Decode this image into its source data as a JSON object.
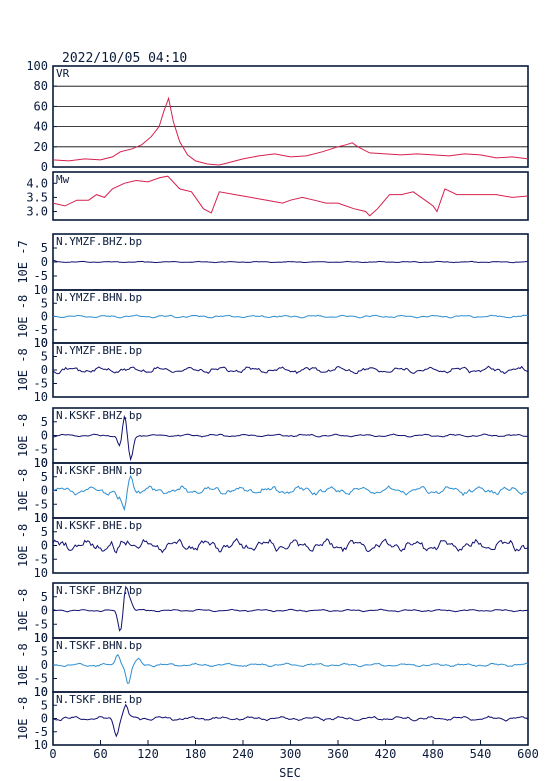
{
  "header": {
    "timestamp": "2022/10/05  04:10"
  },
  "colors": {
    "vr": "#d6204e",
    "mw": "#d6204e",
    "dark": "#101070",
    "light": "#2f8fd0",
    "axis": "#0a1a3a"
  },
  "xaxis": {
    "label": "SEC",
    "ticks": [
      0,
      60,
      120,
      180,
      240,
      300,
      360,
      420,
      480,
      540,
      600
    ],
    "range": [
      0,
      600
    ]
  },
  "chart_data": [
    {
      "type": "line",
      "label": "VR",
      "ylim": [
        0,
        100
      ],
      "yticks": [
        0,
        20,
        40,
        60,
        80,
        100
      ],
      "grid": true,
      "color": "vr",
      "series": [
        {
          "values": [
            [
              0,
              7
            ],
            [
              20,
              6
            ],
            [
              40,
              8
            ],
            [
              60,
              7
            ],
            [
              75,
              10
            ],
            [
              85,
              15
            ],
            [
              100,
              18
            ],
            [
              112,
              22
            ],
            [
              124,
              30
            ],
            [
              134,
              40
            ],
            [
              140,
              55
            ],
            [
              146,
              68
            ],
            [
              152,
              45
            ],
            [
              160,
              25
            ],
            [
              170,
              12
            ],
            [
              180,
              6
            ],
            [
              195,
              3
            ],
            [
              210,
              2
            ],
            [
              220,
              4
            ],
            [
              240,
              8
            ],
            [
              260,
              11
            ],
            [
              280,
              13
            ],
            [
              300,
              10
            ],
            [
              320,
              11
            ],
            [
              340,
              15
            ],
            [
              360,
              20
            ],
            [
              370,
              22
            ],
            [
              378,
              24
            ],
            [
              385,
              20
            ],
            [
              400,
              14
            ],
            [
              420,
              13
            ],
            [
              440,
              12
            ],
            [
              460,
              13
            ],
            [
              480,
              12
            ],
            [
              500,
              11
            ],
            [
              520,
              13
            ],
            [
              540,
              12
            ],
            [
              560,
              9
            ],
            [
              580,
              10
            ],
            [
              600,
              8
            ]
          ]
        }
      ]
    },
    {
      "type": "line",
      "label": "Mw",
      "ylim": [
        2.7,
        4.4
      ],
      "yticks": [
        3.0,
        3.5,
        4.0
      ],
      "ytick_labels": [
        "3.0",
        "3.5",
        "4.0"
      ],
      "grid": false,
      "color": "mw",
      "series": [
        {
          "values": [
            [
              0,
              3.3
            ],
            [
              15,
              3.2
            ],
            [
              30,
              3.4
            ],
            [
              45,
              3.4
            ],
            [
              55,
              3.6
            ],
            [
              65,
              3.5
            ],
            [
              75,
              3.8
            ],
            [
              90,
              4.0
            ],
            [
              105,
              4.1
            ],
            [
              120,
              4.05
            ],
            [
              135,
              4.2
            ],
            [
              145,
              4.25
            ],
            [
              160,
              3.8
            ],
            [
              175,
              3.7
            ],
            [
              190,
              3.1
            ],
            [
              200,
              2.95
            ],
            [
              210,
              3.7
            ],
            [
              230,
              3.6
            ],
            [
              250,
              3.5
            ],
            [
              270,
              3.4
            ],
            [
              290,
              3.3
            ],
            [
              300,
              3.4
            ],
            [
              315,
              3.5
            ],
            [
              330,
              3.4
            ],
            [
              345,
              3.3
            ],
            [
              360,
              3.3
            ],
            [
              380,
              3.1
            ],
            [
              395,
              3.0
            ],
            [
              400,
              2.85
            ],
            [
              410,
              3.1
            ],
            [
              425,
              3.6
            ],
            [
              440,
              3.6
            ],
            [
              455,
              3.7
            ],
            [
              470,
              3.4
            ],
            [
              480,
              3.2
            ],
            [
              485,
              3.0
            ],
            [
              495,
              3.8
            ],
            [
              510,
              3.6
            ],
            [
              540,
              3.6
            ],
            [
              560,
              3.6
            ],
            [
              580,
              3.5
            ],
            [
              600,
              3.55
            ]
          ]
        }
      ]
    },
    {
      "type": "line",
      "label": "N.YMZF.BHZ.bp",
      "exponent": "10E -7",
      "ylim": [
        -10,
        10
      ],
      "yticks": [
        -5,
        0,
        5
      ],
      "ytick_labels": [
        "-5",
        "0",
        "5"
      ],
      "color": "dark",
      "trace": {
        "amp": 0.2,
        "pulse": {
          "t": 0,
          "a": 0.6
        }
      }
    },
    {
      "type": "line",
      "label": "N.YMZF.BHN.bp",
      "exponent": "10E -8",
      "ylim": [
        -10,
        10
      ],
      "yticks": [
        -5,
        0,
        5
      ],
      "ytick_labels": [
        "-5",
        "0",
        "5"
      ],
      "edge_labels": [
        "10",
        "10"
      ],
      "color": "light",
      "trace": {
        "amp": 0.5
      }
    },
    {
      "type": "line",
      "label": "N.YMZF.BHE.bp",
      "exponent": "10E -8",
      "ylim": [
        -10,
        10
      ],
      "yticks": [
        -5,
        0,
        5
      ],
      "ytick_labels": [
        "-5",
        "0",
        "5"
      ],
      "edge_labels": [
        "10",
        "10"
      ],
      "color": "dark",
      "trace": {
        "amp": 1.2
      }
    },
    {
      "type": "line",
      "label": "N.KSKF.BHZ.bp",
      "exponent": "10E -8",
      "ylim": [
        -10,
        10
      ],
      "yticks": [
        -5,
        0,
        5
      ],
      "ytick_labels": [
        "-5",
        "0",
        "5"
      ],
      "edge_labels": [
        "",
        "10"
      ],
      "color": "dark",
      "trace": {
        "amp": 0.5,
        "pulse": {
          "t": 85,
          "a": -5,
          "t2": 98,
          "a2": -9,
          "t3": 90,
          "a3": 8
        }
      }
    },
    {
      "type": "line",
      "label": "N.KSKF.BHN.bp",
      "exponent": "10E -8",
      "ylim": [
        -10,
        10
      ],
      "yticks": [
        -5,
        0,
        5
      ],
      "ytick_labels": [
        "-5",
        "0",
        "5"
      ],
      "edge_labels": [
        "10",
        "10"
      ],
      "color": "light",
      "trace": {
        "amp": 1.5,
        "pulse": {
          "t": 82,
          "a": -3,
          "t2": 90,
          "a2": -8,
          "t3": 98,
          "a3": 6
        }
      }
    },
    {
      "type": "line",
      "label": "N.KSKF.BHE.bp",
      "exponent": "10E -8",
      "ylim": [
        -10,
        10
      ],
      "yticks": [
        -5,
        0,
        5
      ],
      "ytick_labels": [
        "-5",
        "0",
        "5"
      ],
      "edge_labels": [
        "10",
        "10"
      ],
      "color": "dark",
      "trace": {
        "amp": 2.2,
        "pulse": {
          "t": 80,
          "a": -3,
          "t2": 95,
          "a2": 3,
          "t3": 70,
          "a3": 0
        }
      }
    },
    {
      "type": "line",
      "label": "N.TSKF.BHZ.bp",
      "exponent": "10E -8",
      "ylim": [
        -10,
        10
      ],
      "yticks": [
        -5,
        0,
        5
      ],
      "ytick_labels": [
        "-5",
        "0",
        "5"
      ],
      "edge_labels": [
        "",
        "10"
      ],
      "color": "dark",
      "trace": {
        "amp": 0.4,
        "pulse": {
          "t": 85,
          "a": -8,
          "t2": 98,
          "a2": 3,
          "t3": 92,
          "a3": 9
        }
      }
    },
    {
      "type": "line",
      "label": "N.TSKF.BHN.bp",
      "exponent": "10E -8",
      "ylim": [
        -10,
        10
      ],
      "yticks": [
        -5,
        0,
        5
      ],
      "ytick_labels": [
        "-5",
        "0",
        "5"
      ],
      "edge_labels": [
        "10",
        "10"
      ],
      "color": "light",
      "trace": {
        "amp": 0.6,
        "pulse": {
          "t": 82,
          "a": 4,
          "t2": 95,
          "a2": -7,
          "t3": 108,
          "a3": 2
        }
      }
    },
    {
      "type": "line",
      "label": "N.TSKF.BHE.bp",
      "exponent": "10E -8",
      "ylim": [
        -10,
        10
      ],
      "yticks": [
        -5,
        0,
        5
      ],
      "ytick_labels": [
        "-5",
        "0",
        "5"
      ],
      "edge_labels": [
        "10",
        "10"
      ],
      "color": "dark",
      "trace": {
        "amp": 0.8,
        "pulse": {
          "t": 80,
          "a": -6,
          "t2": 92,
          "a2": 5,
          "t3": 70,
          "a3": 0
        }
      }
    }
  ]
}
